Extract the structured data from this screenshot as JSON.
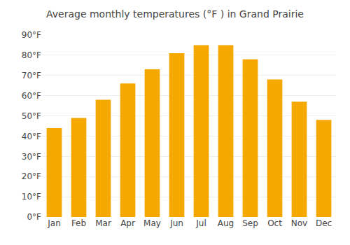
{
  "chart_data": {
    "type": "bar",
    "title": "Average monthly temperatures (°F ) in Grand Prairie",
    "categories": [
      "Jan",
      "Feb",
      "Mar",
      "Apr",
      "May",
      "Jun",
      "Jul",
      "Aug",
      "Sep",
      "Oct",
      "Nov",
      "Dec"
    ],
    "values": [
      44,
      49,
      58,
      66,
      73,
      81,
      85,
      85,
      78,
      68,
      57,
      48
    ],
    "color": "#F5A800",
    "ylim": [
      0,
      90
    ],
    "yticks": [
      {
        "value": 0,
        "label": "0°F"
      },
      {
        "value": 10,
        "label": "10°F"
      },
      {
        "value": 20,
        "label": "20°F"
      },
      {
        "value": 30,
        "label": "30°F"
      },
      {
        "value": 40,
        "label": "40°F"
      },
      {
        "value": 50,
        "label": "50°F"
      },
      {
        "value": 60,
        "label": "60°F"
      },
      {
        "value": 70,
        "label": "70°F"
      },
      {
        "value": 80,
        "label": "80°F"
      },
      {
        "value": 90,
        "label": "90°F"
      }
    ],
    "grid": true
  }
}
